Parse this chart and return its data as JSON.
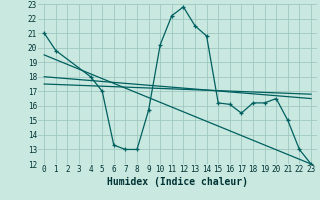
{
  "title": "",
  "xlabel": "Humidex (Indice chaleur)",
  "ylabel": "",
  "bg_color": "#c8e8e0",
  "grid_color": "#a0c8c0",
  "line_color": "#006060",
  "xlim": [
    -0.5,
    23.5
  ],
  "ylim": [
    12,
    23
  ],
  "xticks": [
    0,
    1,
    2,
    3,
    4,
    5,
    6,
    7,
    8,
    9,
    10,
    11,
    12,
    13,
    14,
    15,
    16,
    17,
    18,
    19,
    20,
    21,
    22,
    23
  ],
  "yticks": [
    12,
    13,
    14,
    15,
    16,
    17,
    18,
    19,
    20,
    21,
    22,
    23
  ],
  "series": {
    "main": {
      "x": [
        0,
        1,
        4,
        5,
        6,
        7,
        8,
        9,
        10,
        11,
        12,
        13,
        14,
        15,
        16,
        17,
        18,
        19,
        20,
        21,
        22,
        23
      ],
      "y": [
        21.0,
        19.8,
        18.0,
        17.0,
        13.3,
        13.0,
        13.0,
        15.7,
        20.2,
        22.2,
        22.8,
        21.5,
        20.8,
        16.2,
        16.1,
        15.5,
        16.2,
        16.2,
        16.5,
        15.0,
        13.0,
        12.0
      ]
    },
    "linear1": {
      "x": [
        0,
        23
      ],
      "y": [
        19.5,
        12.0
      ]
    },
    "linear2": {
      "x": [
        0,
        23
      ],
      "y": [
        18.0,
        16.5
      ]
    },
    "linear3": {
      "x": [
        0,
        23
      ],
      "y": [
        17.5,
        16.8
      ]
    }
  },
  "tick_fontsize": 5.5,
  "xlabel_fontsize": 7
}
